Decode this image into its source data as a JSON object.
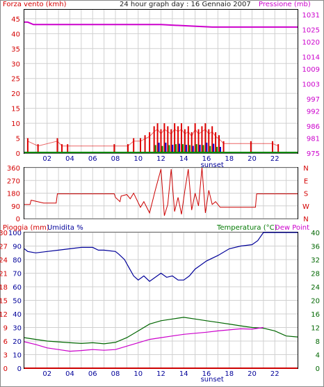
{
  "header": {
    "wind_label": "Forza vento (kmh)",
    "title": "24 hour graph day : 16 Gennaio 2007",
    "pressure_label": "Pressione (mb)"
  },
  "colors": {
    "wind_speed": "#dd0000",
    "gust_green": "#008800",
    "gust_blue": "#0000cc",
    "pressure": "#cc00cc",
    "direction": "#cc0000",
    "humidity": "#000099",
    "temperature": "#006600",
    "dew_point": "#cc00cc",
    "rain": "#cc0000",
    "grid": "#d0d0d0"
  },
  "chart_data": [
    {
      "type": "bar",
      "panel": "wind",
      "xlabel": "sunset",
      "x_ticks": [
        "02",
        "04",
        "06",
        "08",
        "10",
        "12",
        "14",
        "16",
        "18",
        "20",
        "22"
      ],
      "x_range": [
        0,
        24
      ],
      "y_left_label": "Forza vento (kmh)",
      "y_left_ticks": [
        0,
        5,
        10,
        15,
        20,
        25,
        30,
        35,
        40,
        45
      ],
      "y_left_range": [
        0,
        48
      ],
      "y_right_label": "Pressione (mb)",
      "y_right_ticks": [
        975,
        981,
        986,
        992,
        997,
        1003,
        1009,
        1014,
        1020,
        1025,
        1031
      ],
      "y_right_range": [
        975,
        1033
      ],
      "series": [
        {
          "name": "Forza vento (kmh)",
          "x": [
            0.3,
            1.2,
            2.9,
            3.3,
            3.8,
            7.9,
            9.1,
            9.6,
            10.2,
            10.6,
            11.0,
            11.4,
            11.7,
            12.0,
            12.3,
            12.6,
            12.9,
            13.2,
            13.5,
            13.8,
            14.1,
            14.4,
            14.7,
            15.0,
            15.3,
            15.6,
            15.9,
            16.2,
            16.5,
            16.8,
            17.1,
            17.5,
            19.9,
            21.8,
            22.3
          ],
          "values": [
            5,
            3,
            5,
            3,
            3,
            3,
            3,
            5,
            5,
            6,
            7,
            9,
            10,
            8,
            10,
            9,
            8,
            10,
            9,
            10,
            8,
            9,
            7,
            10,
            8,
            9,
            10,
            8,
            9,
            7,
            6,
            4,
            4,
            4,
            3
          ]
        },
        {
          "name": "Pressione (mb)",
          "x": [
            0,
            0.3,
            0.8,
            6,
            12,
            16.5,
            17,
            17.9,
            18.3,
            24
          ],
          "values": [
            1028,
            1028,
            1027,
            1027,
            1027,
            1026,
            1026,
            1026,
            1026,
            1026
          ]
        }
      ]
    },
    {
      "type": "line",
      "panel": "direction",
      "x_range": [
        0,
        24
      ],
      "y_ticks": [
        0,
        90,
        180,
        270,
        360
      ],
      "y_range": [
        0,
        360
      ],
      "y_right_ticks": [
        "N",
        "W",
        "S",
        "E",
        "N"
      ],
      "series": [
        {
          "name": "Direzione",
          "x": [
            0,
            0.5,
            0.6,
            1.7,
            2.8,
            2.9,
            7.9,
            8.0,
            8.4,
            8.5,
            9.0,
            9.3,
            9.6,
            10.2,
            10.5,
            11.0,
            11.5,
            12.0,
            12.3,
            12.6,
            12.9,
            13.2,
            13.5,
            13.8,
            14.1,
            14.4,
            14.7,
            15.0,
            15.3,
            15.6,
            15.9,
            16.2,
            16.5,
            16.8,
            17.2,
            17.5,
            20.3,
            20.4,
            24
          ],
          "values": [
            100,
            100,
            130,
            110,
            110,
            175,
            175,
            150,
            120,
            160,
            170,
            140,
            180,
            80,
            120,
            40,
            200,
            350,
            20,
            100,
            350,
            50,
            150,
            30,
            200,
            350,
            60,
            180,
            90,
            360,
            40,
            200,
            100,
            120,
            80,
            80,
            80,
            175,
            175
          ]
        }
      ]
    },
    {
      "type": "line",
      "panel": "temperature",
      "xlabel": "sunset",
      "x_range": [
        0,
        24
      ],
      "y_left_label": "Pioggia (mm)",
      "y_left_label2": "Umidita %",
      "y_left_ticks": [
        0,
        10,
        20,
        30,
        40,
        50,
        60,
        70,
        80,
        90,
        100
      ],
      "y_left_ticks_rain": [
        0,
        3,
        6,
        9,
        12,
        15,
        18,
        21,
        24,
        27,
        30
      ],
      "y_left_range": [
        0,
        100
      ],
      "y_right_label": "Temperatura (°C)",
      "y_right_label2": "Dew Point",
      "y_right_ticks": [
        0,
        4,
        8,
        12,
        16,
        20,
        24,
        28,
        32,
        36,
        40
      ],
      "y_right_range": [
        0,
        40
      ],
      "series": [
        {
          "name": "Umidita %",
          "x": [
            0,
            0.3,
            1.0,
            2.0,
            3.0,
            4.0,
            5.0,
            6.0,
            6.5,
            7.0,
            8.0,
            8.3,
            8.8,
            9.2,
            9.6,
            10.0,
            10.5,
            11.0,
            11.5,
            12.0,
            12.5,
            13.0,
            13.5,
            14.0,
            14.5,
            15.0,
            16.0,
            17.0,
            18.0,
            19.0,
            20.0,
            20.5,
            21.0,
            22.0,
            23.0,
            24.0
          ],
          "values": [
            88,
            86,
            85,
            86,
            87,
            88,
            89,
            89,
            87,
            87,
            86,
            84,
            80,
            74,
            68,
            65,
            68,
            64,
            67,
            70,
            67,
            68,
            65,
            65,
            68,
            73,
            79,
            83,
            88,
            90,
            91,
            94,
            100,
            100,
            100,
            100
          ]
        },
        {
          "name": "Temperatura (°C)",
          "x": [
            0,
            1.0,
            2.0,
            4.0,
            5.0,
            6.0,
            7.0,
            8.0,
            9.0,
            10.0,
            11.0,
            12.0,
            13.0,
            14.0,
            15.0,
            16.0,
            17.0,
            18.0,
            19.0,
            20.0,
            21.0,
            22.0,
            23.0,
            24.0
          ],
          "values": [
            9,
            8.5,
            8,
            7.5,
            7.3,
            7.5,
            7.2,
            7.6,
            9,
            11,
            13,
            14,
            14.5,
            15,
            14.5,
            14,
            13.5,
            13,
            12.5,
            12,
            11.8,
            11,
            9.5,
            9.2
          ]
        },
        {
          "name": "Dew Point",
          "x": [
            0,
            1.0,
            2.0,
            3.0,
            4.0,
            5.0,
            6.0,
            7.0,
            8.0,
            9.0,
            10.0,
            11.0,
            12.0,
            13.0,
            14.0,
            15.0,
            16.0,
            17.0,
            18.0,
            19.0,
            20.0,
            21.0
          ],
          "values": [
            7.8,
            7,
            6,
            5.5,
            5,
            5.2,
            5.5,
            5.3,
            5.5,
            6.5,
            7.5,
            8.5,
            9,
            9.5,
            10,
            10.3,
            10.6,
            11,
            11.3,
            11.6,
            11.5,
            12
          ]
        },
        {
          "name": "Pioggia (mm)",
          "x": [
            0,
            24
          ],
          "values": [
            0,
            0
          ]
        }
      ]
    }
  ]
}
